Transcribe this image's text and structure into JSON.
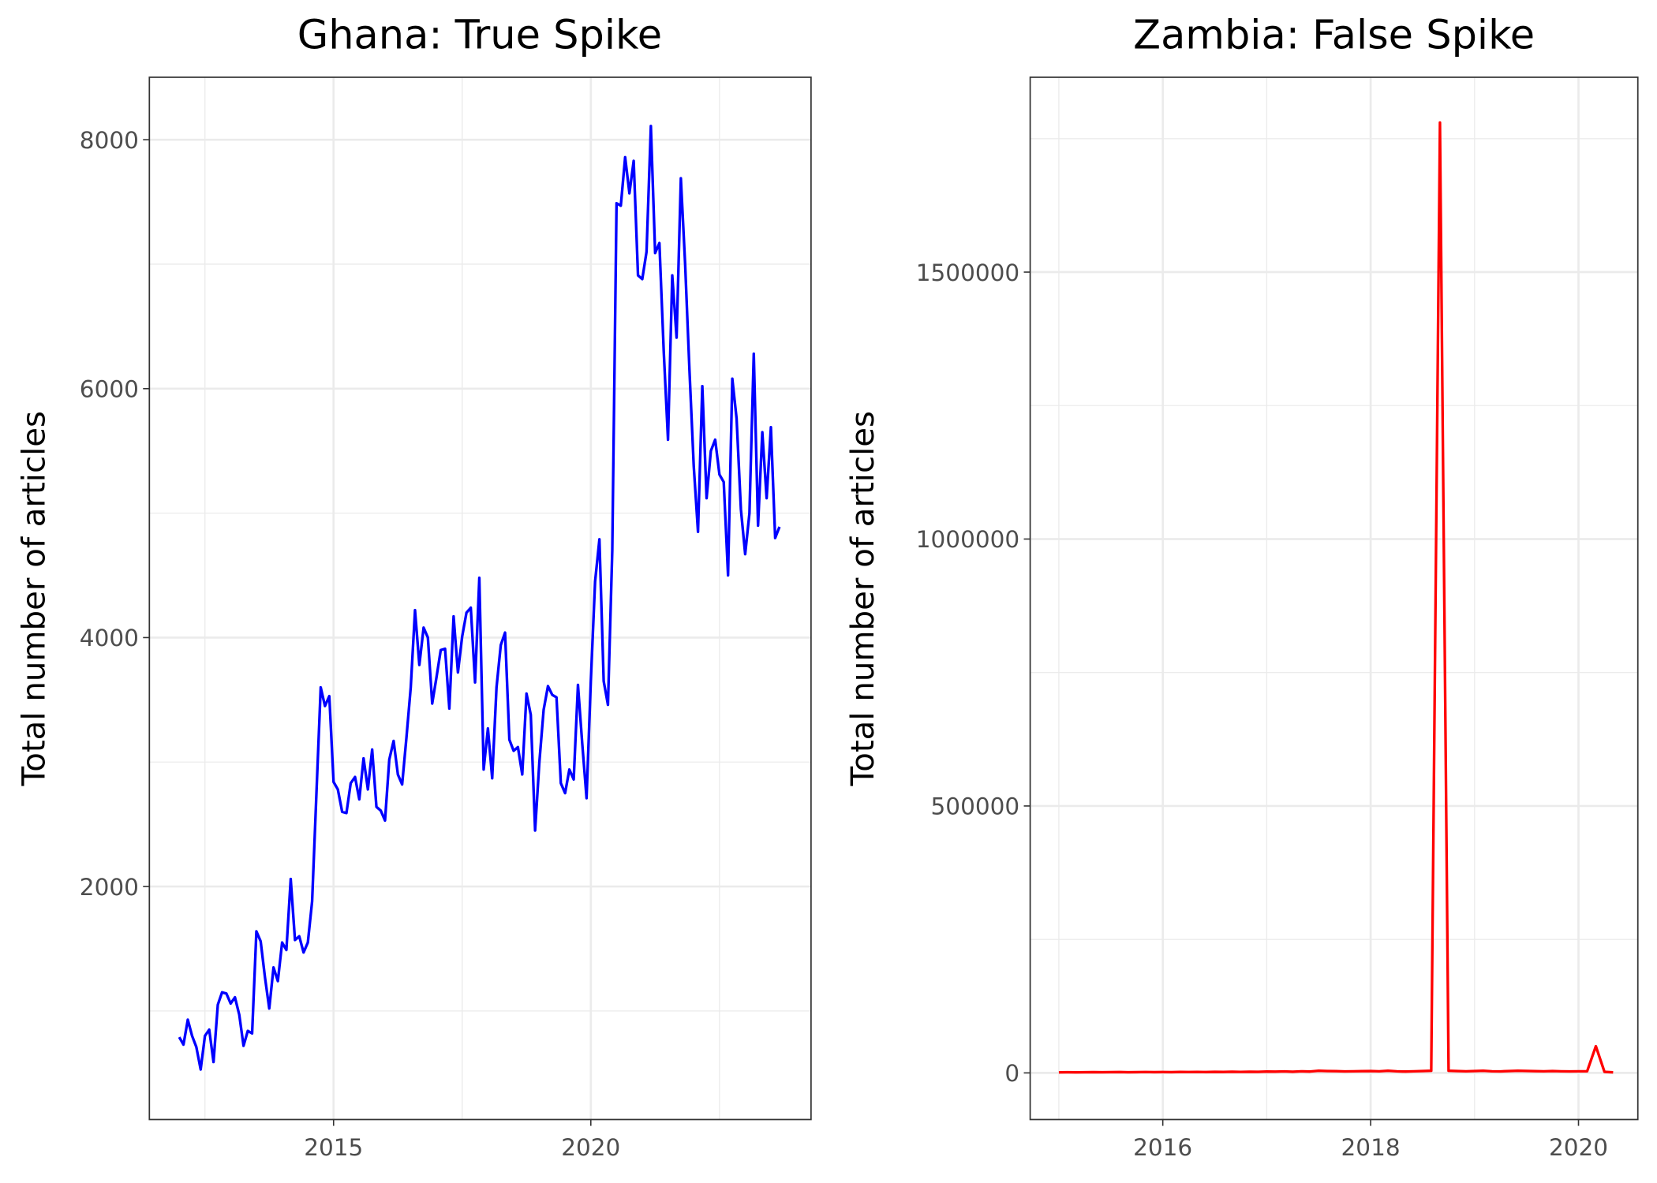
{
  "chart_data": [
    {
      "type": "line",
      "title": "Ghana: True Spike",
      "y_label": "Total number of articles",
      "color": "#0000ff",
      "x": [
        2012,
        2012.083,
        2012.167,
        2012.25,
        2012.333,
        2012.417,
        2012.5,
        2012.583,
        2012.667,
        2012.75,
        2012.833,
        2012.917,
        2013,
        2013.083,
        2013.167,
        2013.25,
        2013.333,
        2013.417,
        2013.5,
        2013.583,
        2013.667,
        2013.75,
        2013.833,
        2013.917,
        2014,
        2014.083,
        2014.167,
        2014.25,
        2014.333,
        2014.417,
        2014.5,
        2014.583,
        2014.667,
        2014.75,
        2014.833,
        2014.917,
        2015,
        2015.083,
        2015.167,
        2015.25,
        2015.333,
        2015.417,
        2015.5,
        2015.583,
        2015.667,
        2015.75,
        2015.833,
        2015.917,
        2016,
        2016.083,
        2016.167,
        2016.25,
        2016.333,
        2016.417,
        2016.5,
        2016.583,
        2016.667,
        2016.75,
        2016.833,
        2016.917,
        2017,
        2017.083,
        2017.167,
        2017.25,
        2017.333,
        2017.417,
        2017.5,
        2017.583,
        2017.667,
        2017.75,
        2017.833,
        2017.917,
        2018,
        2018.083,
        2018.167,
        2018.25,
        2018.333,
        2018.417,
        2018.5,
        2018.583,
        2018.667,
        2018.75,
        2018.833,
        2018.917,
        2019,
        2019.083,
        2019.167,
        2019.25,
        2019.333,
        2019.417,
        2019.5,
        2019.583,
        2019.667,
        2019.75,
        2019.833,
        2019.917,
        2020,
        2020.083,
        2020.167,
        2020.25,
        2020.333,
        2020.417,
        2020.5,
        2020.583,
        2020.667,
        2020.75,
        2020.833,
        2020.917,
        2021,
        2021.083,
        2021.167,
        2021.25,
        2021.333,
        2021.417,
        2021.5,
        2021.583,
        2021.667,
        2021.75,
        2021.833,
        2021.917,
        2022,
        2022.083,
        2022.167,
        2022.25,
        2022.333,
        2022.417,
        2022.5,
        2022.583,
        2022.667,
        2022.75,
        2022.833,
        2022.917,
        2023,
        2023.083,
        2023.167,
        2023.25,
        2023.333,
        2023.417,
        2023.5,
        2023.583,
        2023.667
      ],
      "values": [
        790,
        730,
        930,
        800,
        710,
        530,
        800,
        850,
        590,
        1050,
        1150,
        1140,
        1060,
        1110,
        970,
        720,
        840,
        820,
        1640,
        1560,
        1270,
        1020,
        1350,
        1240,
        1550,
        1490,
        2060,
        1570,
        1600,
        1470,
        1550,
        1880,
        2750,
        3600,
        3450,
        3530,
        2840,
        2780,
        2600,
        2590,
        2830,
        2880,
        2700,
        3030,
        2780,
        3100,
        2640,
        2610,
        2530,
        3020,
        3170,
        2900,
        2820,
        3200,
        3600,
        4220,
        3780,
        4080,
        4000,
        3470,
        3680,
        3900,
        3910,
        3430,
        4170,
        3720,
        4010,
        4200,
        4240,
        3640,
        4480,
        2940,
        3270,
        2870,
        3600,
        3940,
        4040,
        3180,
        3090,
        3120,
        2900,
        3550,
        3380,
        2450,
        3000,
        3420,
        3610,
        3540,
        3520,
        2830,
        2750,
        2940,
        2860,
        3620,
        3150,
        2710,
        3650,
        4450,
        4790,
        3650,
        3460,
        4700,
        7490,
        7470,
        7860,
        7570,
        7830,
        6910,
        6880,
        7100,
        8110,
        7090,
        7170,
        6300,
        5590,
        6910,
        6410,
        7690,
        7000,
        6150,
        5380,
        4850,
        6020,
        5120,
        5500,
        5590,
        5310,
        5250,
        4500,
        6080,
        5760,
        5030,
        4670,
        5000,
        6280,
        4900,
        5650,
        5120,
        5690,
        4800,
        4890
      ],
      "xlim": [
        2011.42,
        2024.28
      ],
      "ylim": [
        128,
        8502
      ],
      "xticks": [
        2015,
        2020
      ],
      "yticks": [
        2000,
        4000,
        6000,
        8000
      ],
      "minor_xticks": [
        2012.5,
        2017.5,
        2022.5
      ],
      "minor_yticks": [
        1000,
        3000,
        5000,
        7000
      ],
      "grid": true
    },
    {
      "type": "line",
      "title": "Zambia: False Spike",
      "y_label": "Total number of articles",
      "color": "#ff0000",
      "x": [
        2015,
        2015.083,
        2015.167,
        2015.25,
        2015.333,
        2015.417,
        2015.5,
        2015.583,
        2015.667,
        2015.75,
        2015.833,
        2015.917,
        2016,
        2016.083,
        2016.167,
        2016.25,
        2016.333,
        2016.417,
        2016.5,
        2016.583,
        2016.667,
        2016.75,
        2016.833,
        2016.917,
        2017,
        2017.083,
        2017.167,
        2017.25,
        2017.333,
        2017.417,
        2017.5,
        2017.583,
        2017.667,
        2017.75,
        2017.833,
        2017.917,
        2018,
        2018.083,
        2018.167,
        2018.25,
        2018.333,
        2018.417,
        2018.5,
        2018.583,
        2018.667,
        2018.75,
        2018.833,
        2018.917,
        2019,
        2019.083,
        2019.167,
        2019.25,
        2019.333,
        2019.417,
        2019.5,
        2019.583,
        2019.667,
        2019.75,
        2019.833,
        2019.917,
        2020,
        2020.083,
        2020.167,
        2020.25,
        2020.333
      ],
      "values": [
        1000,
        1200,
        1100,
        1300,
        1500,
        1200,
        1400,
        1600,
        1300,
        1500,
        1700,
        1400,
        1600,
        1500,
        1800,
        1700,
        1900,
        1600,
        2000,
        1800,
        2100,
        1900,
        2200,
        2000,
        2500,
        2300,
        2800,
        2200,
        3000,
        2600,
        4000,
        3500,
        3200,
        2800,
        3000,
        3300,
        3500,
        3000,
        4000,
        3000,
        2500,
        3000,
        3500,
        4000,
        1780000,
        4000,
        3500,
        3000,
        3500,
        4000,
        3000,
        2800,
        3500,
        4000,
        3600,
        3200,
        3000,
        3400,
        3000,
        2800,
        3000,
        3000,
        50000,
        2000,
        1000
      ],
      "xlim": [
        2014.724,
        2020.571
      ],
      "ylim": [
        -87300,
        1865000
      ],
      "xticks": [
        2016,
        2018,
        2020
      ],
      "yticks": [
        0,
        500000,
        1000000,
        1500000
      ],
      "minor_xticks": [
        2015,
        2017,
        2019
      ],
      "minor_yticks": [
        250000,
        750000,
        1250000,
        1750000
      ],
      "grid": true
    }
  ]
}
